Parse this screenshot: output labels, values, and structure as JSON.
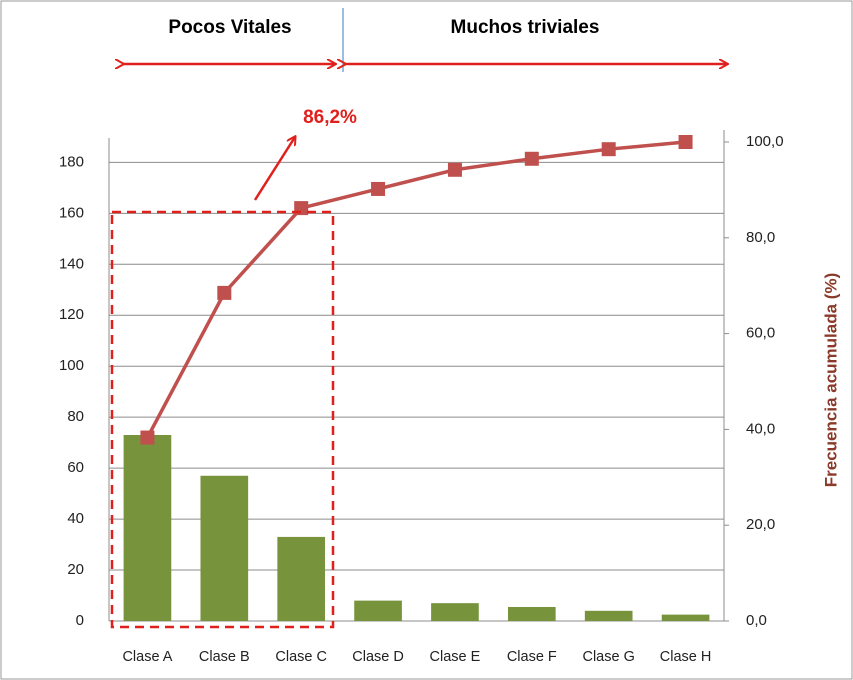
{
  "chart_data": {
    "type": "bar",
    "categories": [
      "Clase A",
      "Clase B",
      "Clase C",
      "Clase D",
      "Clase E",
      "Clase F",
      "Clase G",
      "Clase H"
    ],
    "series": [
      {
        "color": "#77933c",
        "values": [
          73,
          57,
          33,
          8,
          7,
          5.5,
          4,
          2.5
        ]
      },
      {
        "color": "#c0504d",
        "values": [
          38.3,
          68.5,
          86.2,
          90.2,
          94.2,
          96.5,
          98.5,
          100
        ],
        "axis": "y2"
      }
    ],
    "ylim": [
      0,
      188
    ],
    "yticks": [
      0,
      20,
      40,
      60,
      80,
      100,
      120,
      140,
      160,
      180
    ],
    "y2lim": [
      0,
      100
    ],
    "y2ticks": [
      {
        "value": 0,
        "label": "0,0"
      },
      {
        "value": 20,
        "label": "20,0"
      },
      {
        "value": 40,
        "label": "40,0"
      },
      {
        "value": 60,
        "label": "60,0"
      },
      {
        "value": 80,
        "label": "80,0"
      },
      {
        "value": 100,
        "label": "100,0"
      }
    ],
    "y2label": "Frecuencia acumulada (%)",
    "grid": true,
    "annotations": [
      "Pocos Vitales",
      "Muchos triviales",
      "86,2%"
    ]
  }
}
